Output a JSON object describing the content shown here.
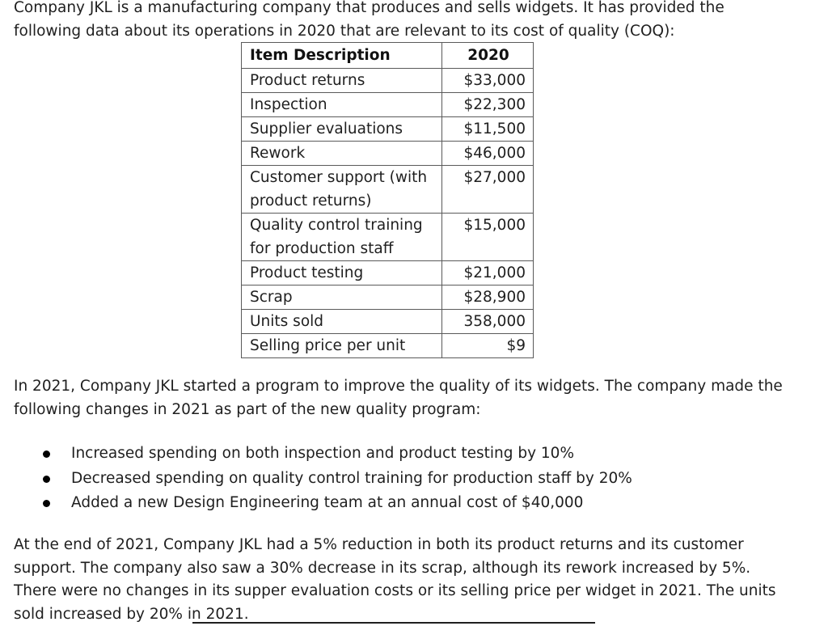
{
  "intro": {
    "text": "Company JKL is a manufacturing company that produces and sells widgets. It has provided the following data about its operations in 2020 that are relevant to its cost of quality (COQ):"
  },
  "table": {
    "headers": [
      "Item Description",
      "2020"
    ],
    "rows": [
      {
        "item": "Product returns",
        "value": "$33,000"
      },
      {
        "item": "Inspection",
        "value": "$22,300"
      },
      {
        "item": "Supplier evaluations",
        "value": "$11,500"
      },
      {
        "item": "Rework",
        "value": "$46,000"
      },
      {
        "item": "Customer support (with product returns)",
        "value": "$27,000"
      },
      {
        "item": "Quality control training for production staff",
        "value": "$15,000"
      },
      {
        "item": "Product testing",
        "value": "$21,000"
      },
      {
        "item": "Scrap",
        "value": "$28,900"
      },
      {
        "item": "Units sold",
        "value": "358,000"
      },
      {
        "item": "Selling price per unit",
        "value": "$9"
      }
    ]
  },
  "middle": {
    "text": "In 2021, Company JKL started a program to improve the quality of its widgets. The company made the following changes in 2021 as part of the new quality program:"
  },
  "changes": [
    "Increased spending on both inspection and product testing by 10%",
    "Decreased spending on quality control training for production staff by 20%",
    "Added a new Design Engineering team at an annual cost of $40,000"
  ],
  "ending": {
    "text": "At the end of 2021, Company JKL had a 5% reduction in both its product returns and its customer support. The company also saw a 30% decrease in its scrap, although its rework increased by 5%. There were no changes in its supper evaluation costs or its selling price per widget in 2021. The units sold increased by 20% in 2021."
  }
}
